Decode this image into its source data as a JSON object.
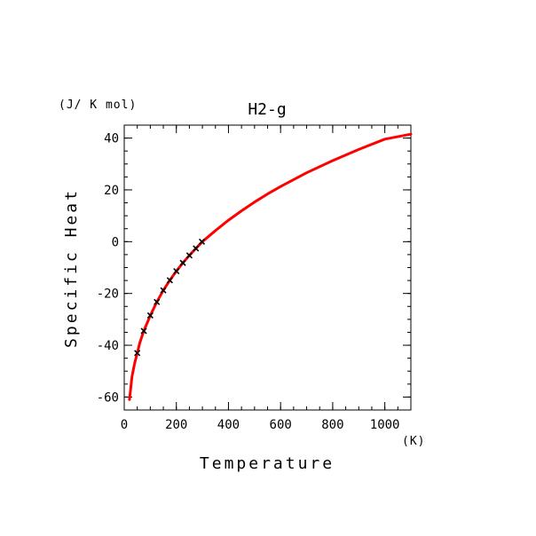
{
  "chart_data": {
    "type": "line",
    "title": "H2-g",
    "xlabel": "Temperature",
    "ylabel": "Specific Heat",
    "x_unit": "(K)",
    "y_unit": "(J/ K mol)",
    "xlim": [
      0,
      1100
    ],
    "ylim": [
      -65,
      45
    ],
    "x_ticks": [
      0,
      200,
      400,
      600,
      800,
      1000
    ],
    "x_minor_step": 50,
    "y_ticks": [
      -60,
      -40,
      -20,
      0,
      20,
      40
    ],
    "y_minor_step": 5,
    "grid": false,
    "colors": {
      "curve": "#ff0000",
      "markers": "#000000",
      "axes": "#000000"
    },
    "series": [
      {
        "style": "line",
        "x": [
          20,
          30,
          40,
          50,
          60,
          75,
          100,
          125,
          150,
          175,
          200,
          225,
          250,
          275,
          300,
          350,
          400,
          450,
          500,
          550,
          600,
          700,
          800,
          900,
          1000,
          1100
        ],
        "values": [
          -61,
          -52,
          -47,
          -43,
          -39,
          -34.5,
          -28.5,
          -23.3,
          -18.8,
          -14.9,
          -11.4,
          -8.2,
          -5.3,
          -2.6,
          0,
          4.3,
          8.3,
          11.9,
          15.3,
          18.4,
          21.3,
          26.6,
          31.3,
          35.6,
          39.6,
          41.5
        ]
      },
      {
        "style": "markers",
        "marker": "x",
        "x": [
          50,
          75,
          100,
          125,
          150,
          175,
          200,
          225,
          250,
          275,
          298
        ],
        "values": [
          -43,
          -34.5,
          -28.5,
          -23.3,
          -18.8,
          -14.9,
          -11.4,
          -8.2,
          -5.3,
          -2.6,
          0
        ]
      }
    ]
  }
}
